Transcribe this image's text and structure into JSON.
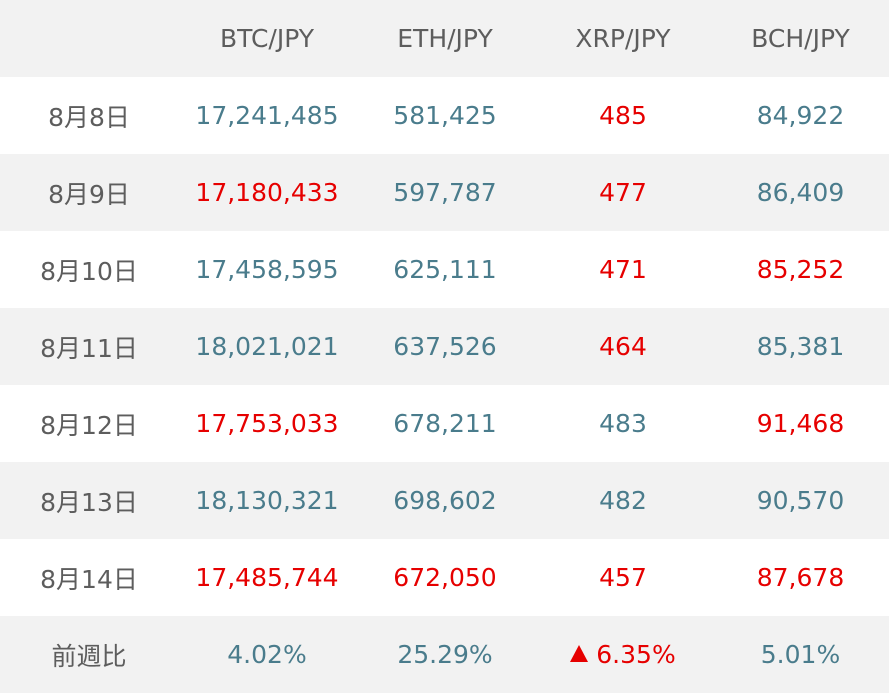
{
  "header": {
    "corner": "",
    "columns": [
      "BTC/JPY",
      "ETH/JPY",
      "XRP/JPY",
      "BCH/JPY"
    ]
  },
  "rows": [
    {
      "date": "8月8日",
      "values": [
        "17,241,485",
        "581,425",
        "485",
        "84,922"
      ],
      "colors": [
        "neutral",
        "neutral",
        "red",
        "neutral"
      ]
    },
    {
      "date": "8月9日",
      "values": [
        "17,180,433",
        "597,787",
        "477",
        "86,409"
      ],
      "colors": [
        "red",
        "neutral",
        "red",
        "neutral"
      ]
    },
    {
      "date": "8月10日",
      "values": [
        "17,458,595",
        "625,111",
        "471",
        "85,252"
      ],
      "colors": [
        "neutral",
        "neutral",
        "red",
        "red"
      ]
    },
    {
      "date": "8月11日",
      "values": [
        "18,021,021",
        "637,526",
        "464",
        "85,381"
      ],
      "colors": [
        "neutral",
        "neutral",
        "red",
        "neutral"
      ]
    },
    {
      "date": "8月12日",
      "values": [
        "17,753,033",
        "678,211",
        "483",
        "91,468"
      ],
      "colors": [
        "red",
        "neutral",
        "neutral",
        "red"
      ]
    },
    {
      "date": "8月13日",
      "values": [
        "18,130,321",
        "698,602",
        "482",
        "90,570"
      ],
      "colors": [
        "neutral",
        "neutral",
        "neutral",
        "neutral"
      ]
    },
    {
      "date": "8月14日",
      "values": [
        "17,485,744",
        "672,050",
        "457",
        "87,678"
      ],
      "colors": [
        "red",
        "red",
        "red",
        "red"
      ]
    }
  ],
  "footer": {
    "label": "前週比",
    "values": [
      "4.02%",
      "25.29%",
      "6.35%",
      "5.01%"
    ],
    "colors": [
      "neutral",
      "neutral",
      "red",
      "neutral"
    ],
    "arrows": [
      false,
      false,
      true,
      false
    ],
    "arrow_icon": "up-triangle-icon"
  },
  "colors": {
    "neutral": "#4a7c8c",
    "red": "#e60000",
    "label": "#5d5d5d",
    "stripe": "#f2f2f2"
  }
}
